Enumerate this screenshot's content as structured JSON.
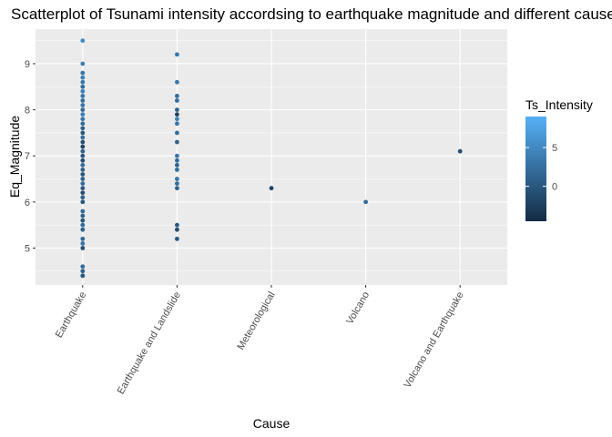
{
  "chart_data": {
    "type": "scatter",
    "title": "Scatterplot of Tsunami intensity accordsing to earthquake magnitude and different causes",
    "xlabel": "Cause",
    "ylabel": "Eq_Magnitude",
    "categories": [
      "Earthquake",
      "Earthquake and Landslide",
      "Meteorological",
      "Volcano",
      "Volcano and Earthquake"
    ],
    "ylim": [
      4.2,
      9.75
    ],
    "yticks": [
      5,
      6,
      7,
      8,
      9
    ],
    "grid": true,
    "legend": {
      "title": "Ts_Intensity",
      "placement": "right",
      "range": [
        -4.5,
        9
      ],
      "ticks": [
        0,
        5
      ],
      "colors": {
        "low": "#132b43",
        "high": "#56b1f7"
      }
    },
    "points": [
      {
        "cause": "Earthquake",
        "y": 9.5,
        "intensity": 5
      },
      {
        "cause": "Earthquake",
        "y": 9.0,
        "intensity": 4
      },
      {
        "cause": "Earthquake",
        "y": 8.8,
        "intensity": 3
      },
      {
        "cause": "Earthquake",
        "y": 8.7,
        "intensity": 4
      },
      {
        "cause": "Earthquake",
        "y": 8.6,
        "intensity": 3
      },
      {
        "cause": "Earthquake",
        "y": 8.5,
        "intensity": 2
      },
      {
        "cause": "Earthquake",
        "y": 8.4,
        "intensity": 4
      },
      {
        "cause": "Earthquake",
        "y": 8.3,
        "intensity": 3
      },
      {
        "cause": "Earthquake",
        "y": 8.2,
        "intensity": 2
      },
      {
        "cause": "Earthquake",
        "y": 8.1,
        "intensity": 3
      },
      {
        "cause": "Earthquake",
        "y": 8.0,
        "intensity": 2
      },
      {
        "cause": "Earthquake",
        "y": 7.9,
        "intensity": 4
      },
      {
        "cause": "Earthquake",
        "y": 7.8,
        "intensity": 3
      },
      {
        "cause": "Earthquake",
        "y": 7.7,
        "intensity": 2
      },
      {
        "cause": "Earthquake",
        "y": 7.6,
        "intensity": 1
      },
      {
        "cause": "Earthquake",
        "y": 7.5,
        "intensity": 0
      },
      {
        "cause": "Earthquake",
        "y": 7.4,
        "intensity": 2
      },
      {
        "cause": "Earthquake",
        "y": 7.3,
        "intensity": -1
      },
      {
        "cause": "Earthquake",
        "y": 7.2,
        "intensity": -2
      },
      {
        "cause": "Earthquake",
        "y": 7.1,
        "intensity": 1
      },
      {
        "cause": "Earthquake",
        "y": 7.0,
        "intensity": 0
      },
      {
        "cause": "Earthquake",
        "y": 6.9,
        "intensity": -1
      },
      {
        "cause": "Earthquake",
        "y": 6.8,
        "intensity": 2
      },
      {
        "cause": "Earthquake",
        "y": 6.7,
        "intensity": 1
      },
      {
        "cause": "Earthquake",
        "y": 6.6,
        "intensity": 0
      },
      {
        "cause": "Earthquake",
        "y": 6.5,
        "intensity": 1
      },
      {
        "cause": "Earthquake",
        "y": 6.4,
        "intensity": 2
      },
      {
        "cause": "Earthquake",
        "y": 6.3,
        "intensity": 0
      },
      {
        "cause": "Earthquake",
        "y": 6.2,
        "intensity": -1
      },
      {
        "cause": "Earthquake",
        "y": 6.1,
        "intensity": 1
      },
      {
        "cause": "Earthquake",
        "y": 6.0,
        "intensity": 0
      },
      {
        "cause": "Earthquake",
        "y": 5.8,
        "intensity": 2
      },
      {
        "cause": "Earthquake",
        "y": 5.7,
        "intensity": 1
      },
      {
        "cause": "Earthquake",
        "y": 5.6,
        "intensity": 0
      },
      {
        "cause": "Earthquake",
        "y": 5.5,
        "intensity": 2
      },
      {
        "cause": "Earthquake",
        "y": 5.4,
        "intensity": 1
      },
      {
        "cause": "Earthquake",
        "y": 5.2,
        "intensity": 2
      },
      {
        "cause": "Earthquake",
        "y": 5.1,
        "intensity": 3
      },
      {
        "cause": "Earthquake",
        "y": 5.0,
        "intensity": -1
      },
      {
        "cause": "Earthquake",
        "y": 4.6,
        "intensity": 2
      },
      {
        "cause": "Earthquake",
        "y": 4.5,
        "intensity": 1
      },
      {
        "cause": "Earthquake",
        "y": 4.4,
        "intensity": 0
      },
      {
        "cause": "Earthquake and Landslide",
        "y": 9.2,
        "intensity": 3
      },
      {
        "cause": "Earthquake and Landslide",
        "y": 8.6,
        "intensity": 3
      },
      {
        "cause": "Earthquake and Landslide",
        "y": 8.3,
        "intensity": 2
      },
      {
        "cause": "Earthquake and Landslide",
        "y": 8.2,
        "intensity": 2
      },
      {
        "cause": "Earthquake and Landslide",
        "y": 8.0,
        "intensity": 1
      },
      {
        "cause": "Earthquake and Landslide",
        "y": 7.9,
        "intensity": -2
      },
      {
        "cause": "Earthquake and Landslide",
        "y": 7.8,
        "intensity": 4
      },
      {
        "cause": "Earthquake and Landslide",
        "y": 7.7,
        "intensity": 3
      },
      {
        "cause": "Earthquake and Landslide",
        "y": 7.5,
        "intensity": 2
      },
      {
        "cause": "Earthquake and Landslide",
        "y": 7.3,
        "intensity": 1
      },
      {
        "cause": "Earthquake and Landslide",
        "y": 7.0,
        "intensity": 3
      },
      {
        "cause": "Earthquake and Landslide",
        "y": 6.9,
        "intensity": 2
      },
      {
        "cause": "Earthquake and Landslide",
        "y": 6.8,
        "intensity": 1
      },
      {
        "cause": "Earthquake and Landslide",
        "y": 6.7,
        "intensity": 2
      },
      {
        "cause": "Earthquake and Landslide",
        "y": 6.5,
        "intensity": 3
      },
      {
        "cause": "Earthquake and Landslide",
        "y": 6.4,
        "intensity": 2
      },
      {
        "cause": "Earthquake and Landslide",
        "y": 6.3,
        "intensity": 1
      },
      {
        "cause": "Earthquake and Landslide",
        "y": 5.5,
        "intensity": 0
      },
      {
        "cause": "Earthquake and Landslide",
        "y": 5.4,
        "intensity": -1
      },
      {
        "cause": "Earthquake and Landslide",
        "y": 5.2,
        "intensity": 0
      },
      {
        "cause": "Meteorological",
        "y": 6.3,
        "intensity": -2
      },
      {
        "cause": "Volcano",
        "y": 6.0,
        "intensity": 2
      },
      {
        "cause": "Volcano and Earthquake",
        "y": 7.1,
        "intensity": -1
      }
    ]
  }
}
